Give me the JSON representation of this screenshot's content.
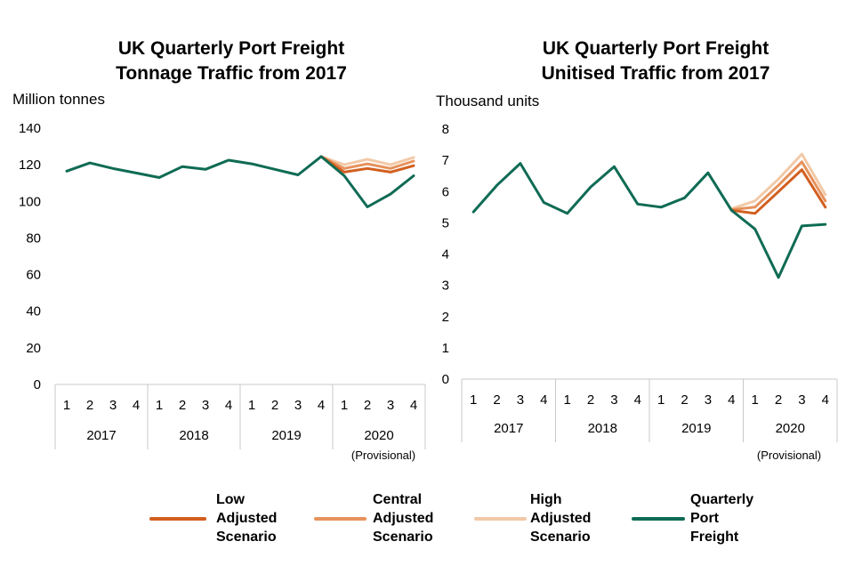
{
  "chart_data": [
    {
      "type": "line",
      "title": "UK Quarterly Port Freight",
      "subtitle": "Tonnage Traffic from 2017",
      "ylabel": "Million tonnes",
      "ylim": [
        0,
        140
      ],
      "yticks": [
        "0",
        "20",
        "40",
        "60",
        "80",
        "100",
        "120",
        "140"
      ],
      "quarters": [
        "1",
        "2",
        "3",
        "4",
        "1",
        "2",
        "3",
        "4",
        "1",
        "2",
        "3",
        "4",
        "1",
        "2",
        "3",
        "4"
      ],
      "years": [
        "2017",
        "2018",
        "2019",
        "2020"
      ],
      "note": "(Provisional)",
      "series": [
        {
          "name": "Quarterly Port Freight",
          "color": "#0f6b54",
          "values": [
            116.5,
            121,
            118,
            115.5,
            113,
            119,
            117.5,
            122.5,
            120.5,
            117.5,
            114.5,
            124.5,
            114,
            97,
            104,
            114
          ]
        },
        {
          "name": "High Adjusted Scenario",
          "color": "#f2c9a7",
          "values": [
            null,
            null,
            null,
            null,
            null,
            null,
            null,
            null,
            null,
            null,
            null,
            124.5,
            120,
            123,
            120,
            124
          ]
        },
        {
          "name": "Central Adjusted Scenario",
          "color": "#e6925c",
          "values": [
            null,
            null,
            null,
            null,
            null,
            null,
            null,
            null,
            null,
            null,
            null,
            124.5,
            118,
            120.5,
            118,
            122
          ]
        },
        {
          "name": "Low Adjusted Scenario",
          "color": "#d25f1f",
          "values": [
            null,
            null,
            null,
            null,
            null,
            null,
            null,
            null,
            null,
            null,
            null,
            124.5,
            116,
            118,
            116,
            119.5
          ]
        }
      ]
    },
    {
      "type": "line",
      "title": "UK Quarterly Port Freight",
      "subtitle": "Unitised Traffic from 2017",
      "ylabel": "Thousand units",
      "ylim": [
        0,
        8
      ],
      "yticks": [
        "0",
        "1",
        "2",
        "3",
        "4",
        "5",
        "6",
        "7",
        "8"
      ],
      "quarters": [
        "1",
        "2",
        "3",
        "4",
        "1",
        "2",
        "3",
        "4",
        "1",
        "2",
        "3",
        "4",
        "1",
        "2",
        "3",
        "4"
      ],
      "years": [
        "2017",
        "2018",
        "2019",
        "2020"
      ],
      "note": "(Provisional)",
      "series": [
        {
          "name": "Quarterly Port Freight",
          "color": "#0f6b54",
          "values": [
            5.35,
            6.2,
            6.9,
            5.65,
            5.3,
            6.15,
            6.8,
            5.6,
            5.5,
            5.8,
            6.6,
            5.4,
            4.8,
            3.25,
            4.9,
            4.95
          ]
        },
        {
          "name": "High Adjusted Scenario",
          "color": "#f2c9a7",
          "values": [
            null,
            null,
            null,
            null,
            null,
            null,
            null,
            null,
            null,
            null,
            null,
            5.45,
            5.7,
            6.4,
            7.2,
            5.9
          ]
        },
        {
          "name": "Central Adjusted Scenario",
          "color": "#e6925c",
          "values": [
            null,
            null,
            null,
            null,
            null,
            null,
            null,
            null,
            null,
            null,
            null,
            5.42,
            5.5,
            6.2,
            6.95,
            5.7
          ]
        },
        {
          "name": "Low Adjusted Scenario",
          "color": "#d25f1f",
          "values": [
            null,
            null,
            null,
            null,
            null,
            null,
            null,
            null,
            null,
            null,
            null,
            5.4,
            5.3,
            6.0,
            6.7,
            5.5
          ]
        }
      ]
    }
  ],
  "legend": [
    {
      "lines": [
        "Low",
        "Adjusted",
        "Scenario"
      ],
      "color": "#d25f1f"
    },
    {
      "lines": [
        "Central",
        "Adjusted",
        "Scenario"
      ],
      "color": "#e6925c"
    },
    {
      "lines": [
        "High",
        "Adjusted",
        "Scenario"
      ],
      "color": "#f2c9a7"
    },
    {
      "lines": [
        "Quarterly",
        "Port",
        "Freight"
      ],
      "color": "#0f6b54"
    }
  ]
}
